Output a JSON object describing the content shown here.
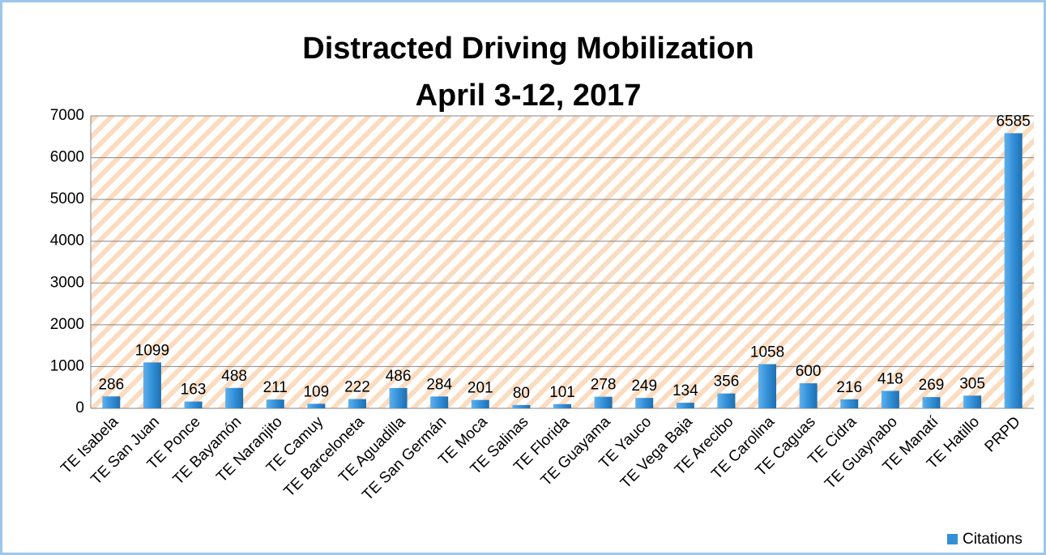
{
  "chart_data": {
    "type": "bar",
    "title": [
      "Distracted Driving Mobilization",
      "April 3-12, 2017"
    ],
    "categories": [
      "TE Isabela",
      "TE San Juan",
      "TE Ponce",
      "TE Bayamón",
      "TE Naranjito",
      "TE Camuy",
      "TE Barceloneta",
      "TE Aguadilla",
      "TE San Germán",
      "TE Moca",
      "TE Salinas",
      "TE Florida",
      "TE Guayama",
      "TE Yauco",
      "TE Vega Baja",
      "TE Arecibo",
      "TE Carolina",
      "TE Caguas",
      "TE Cidra",
      "TE Guaynabo",
      "TE Manatí",
      "TE Hatillo",
      "PRPD"
    ],
    "series": [
      {
        "name": "Citations",
        "color": "#3390d8",
        "values": [
          286,
          1099,
          163,
          488,
          211,
          109,
          222,
          486,
          284,
          201,
          80,
          101,
          278,
          249,
          134,
          356,
          1058,
          600,
          216,
          418,
          269,
          305,
          6585
        ]
      }
    ],
    "ylim": [
      0,
      7000
    ],
    "yticks": [
      0,
      1000,
      2000,
      3000,
      4000,
      5000,
      6000,
      7000
    ],
    "grid": true,
    "legend": "bottom-right"
  }
}
